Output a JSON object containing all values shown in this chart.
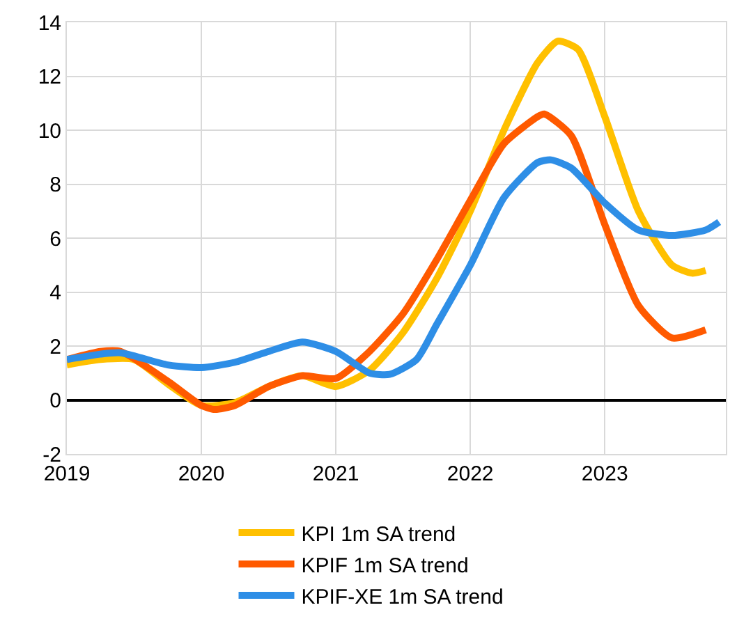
{
  "chart_data": {
    "type": "line",
    "xlim": [
      2019,
      2023.9
    ],
    "xticks": [
      2019,
      2020,
      2021,
      2022,
      2023
    ],
    "ylim": [
      -2,
      14
    ],
    "yticks": [
      -2,
      0,
      2,
      4,
      6,
      8,
      10,
      12,
      14
    ],
    "grid": true,
    "legend": "bottom",
    "line_style": "solid",
    "marker": "none",
    "series": [
      {
        "name": "KPI 1m SA trend",
        "color": "#ffc000",
        "x": [
          2019,
          2019.25,
          2019.5,
          2019.75,
          2020,
          2020.25,
          2020.5,
          2020.75,
          2021,
          2021.25,
          2021.5,
          2021.75,
          2022,
          2022.25,
          2022.5,
          2022.65,
          2022.8,
          2023,
          2023.25,
          2023.5,
          2023.65,
          2023.75
        ],
        "values": [
          1.3,
          1.5,
          1.5,
          0.6,
          -0.2,
          -0.1,
          0.5,
          0.9,
          0.5,
          1.1,
          2.5,
          4.5,
          7,
          10,
          12.5,
          13.3,
          13,
          10.5,
          7,
          5,
          4.7,
          4.8
        ]
      },
      {
        "name": "KPIF 1m SA trend",
        "color": "#ff5a00",
        "x": [
          2019,
          2019.25,
          2019.4,
          2019.75,
          2020,
          2020.1,
          2020.25,
          2020.5,
          2020.75,
          2021,
          2021.25,
          2021.5,
          2021.75,
          2022,
          2022.25,
          2022.5,
          2022.55,
          2022.75,
          2023,
          2023.25,
          2023.5,
          2023.75
        ],
        "values": [
          1.5,
          1.8,
          1.8,
          0.7,
          -0.2,
          -0.35,
          -0.2,
          0.5,
          0.9,
          0.8,
          1.8,
          3.2,
          5.2,
          7.4,
          9.5,
          10.5,
          10.6,
          9.8,
          6.5,
          3.5,
          2.3,
          2.6
        ]
      },
      {
        "name": "KPIF-XE 1m SA trend",
        "color": "#2e8ee6",
        "x": [
          2019,
          2019.25,
          2019.4,
          2019.75,
          2020,
          2020.25,
          2020.5,
          2020.75,
          2021,
          2021.25,
          2021.4,
          2021.6,
          2021.75,
          2022,
          2022.25,
          2022.5,
          2022.6,
          2022.75,
          2023,
          2023.25,
          2023.5,
          2023.75,
          2023.85
        ],
        "values": [
          1.5,
          1.7,
          1.75,
          1.3,
          1.2,
          1.4,
          1.8,
          2.15,
          1.8,
          1,
          0.95,
          1.5,
          2.8,
          5,
          7.5,
          8.8,
          8.9,
          8.6,
          7.3,
          6.3,
          6.1,
          6.3,
          6.6
        ]
      }
    ]
  }
}
